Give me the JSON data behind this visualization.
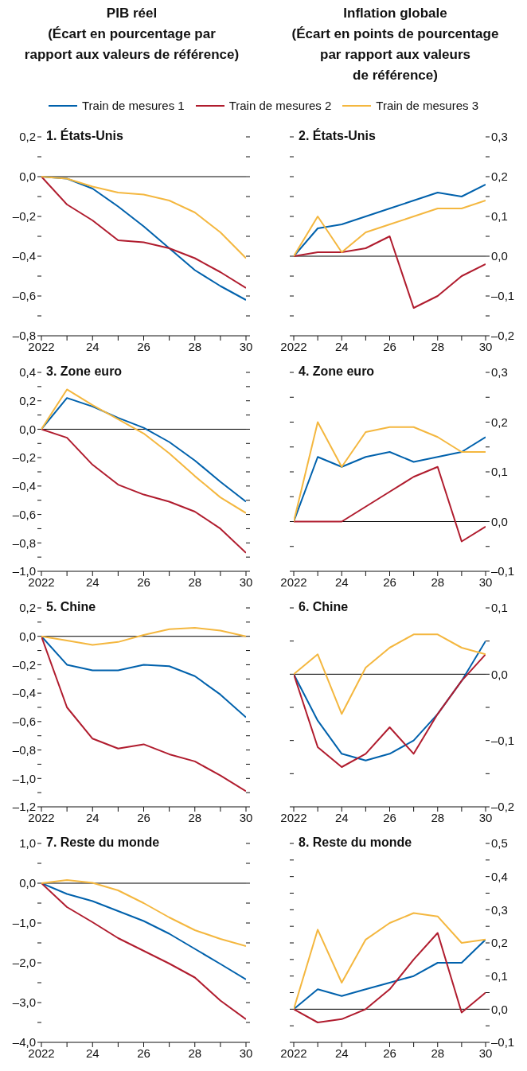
{
  "chart_data": [
    {
      "type": "line",
      "title": "1. États-Unis",
      "annotations": [
        "PIB réel\n(Écart en pourcentage par\nrapport aux valeurs de référence)"
      ],
      "legend": "top",
      "x": [
        2022,
        2023,
        2024,
        2025,
        2026,
        2027,
        2028,
        2029,
        2030
      ],
      "xlim": [
        2022,
        2030
      ],
      "xticks": [
        {
          "value": 2022,
          "label": "2022"
        },
        {
          "value": 2023,
          "label": null
        },
        {
          "value": 2024,
          "label": "24"
        },
        {
          "value": 2025,
          "label": null
        },
        {
          "value": 2026,
          "label": "26"
        },
        {
          "value": 2027,
          "label": null
        },
        {
          "value": 2028,
          "label": "28"
        },
        {
          "value": 2029,
          "label": null
        },
        {
          "value": 2030,
          "label": "30"
        }
      ],
      "ylim": [
        -0.8,
        0.2
      ],
      "yticks": [
        {
          "value": -0.8,
          "label": "–0,8"
        },
        {
          "value": -0.7,
          "label": null
        },
        {
          "value": -0.6,
          "label": "–0,6"
        },
        {
          "value": -0.5,
          "label": null
        },
        {
          "value": -0.4,
          "label": "–0,4"
        },
        {
          "value": -0.3,
          "label": null
        },
        {
          "value": -0.2,
          "label": "–0,2"
        },
        {
          "value": -0.1,
          "label": null
        },
        {
          "value": 0,
          "label": "0,0"
        },
        {
          "value": 0.1,
          "label": null
        },
        {
          "value": 0.2,
          "label": "0,2"
        }
      ],
      "ref_lines": [
        {
          "axis": "y",
          "value": 0,
          "color": "#000000"
        }
      ],
      "series": [
        {
          "name": "Train de mesures 1",
          "color": "#0061ac",
          "values": [
            0,
            -0.01,
            -0.06,
            -0.15,
            -0.25,
            -0.36,
            -0.47,
            -0.55,
            -0.62
          ]
        },
        {
          "name": "Train de mesures 2",
          "color": "#b01c2e",
          "values": [
            0,
            -0.14,
            -0.22,
            -0.32,
            -0.33,
            -0.36,
            -0.41,
            -0.48,
            -0.56
          ]
        },
        {
          "name": "Train de mesures 3",
          "color": "#f4b73f",
          "values": [
            0,
            -0.01,
            -0.05,
            -0.08,
            -0.09,
            -0.12,
            -0.18,
            -0.28,
            -0.41
          ]
        }
      ]
    },
    {
      "type": "line",
      "title": "2. États-Unis",
      "annotations": [
        "Inflation globale\n(Écart en points de pourcentage\npar rapport aux valeurs\nde référence)"
      ],
      "x": [
        2022,
        2023,
        2024,
        2025,
        2026,
        2027,
        2028,
        2029,
        2030
      ],
      "xlim": [
        2022,
        2030
      ],
      "xticks": [
        {
          "value": 2022,
          "label": "2022"
        },
        {
          "value": 2023,
          "label": null
        },
        {
          "value": 2024,
          "label": "24"
        },
        {
          "value": 2025,
          "label": null
        },
        {
          "value": 2026,
          "label": "26"
        },
        {
          "value": 2027,
          "label": null
        },
        {
          "value": 2028,
          "label": "28"
        },
        {
          "value": 2029,
          "label": null
        },
        {
          "value": 2030,
          "label": "30"
        }
      ],
      "ylim": [
        -0.2,
        0.3
      ],
      "yticks": [
        {
          "value": -0.2,
          "label": "–0,2"
        },
        {
          "value": -0.15,
          "label": null
        },
        {
          "value": -0.1,
          "label": "–0,1"
        },
        {
          "value": -0.05,
          "label": null
        },
        {
          "value": 0,
          "label": "0,0"
        },
        {
          "value": 0.05,
          "label": null
        },
        {
          "value": 0.1,
          "label": "0,1"
        },
        {
          "value": 0.15,
          "label": null
        },
        {
          "value": 0.2,
          "label": "0,2"
        },
        {
          "value": 0.25,
          "label": null
        },
        {
          "value": 0.3,
          "label": "0,3"
        }
      ],
      "ref_lines": [
        {
          "axis": "y",
          "value": 0,
          "color": "#000000"
        }
      ],
      "series": [
        {
          "color": "#0061ac",
          "values": [
            0,
            0.07,
            0.08,
            0.1,
            0.12,
            0.14,
            0.16,
            0.15,
            0.18
          ]
        },
        {
          "color": "#b01c2e",
          "values": [
            0,
            0.01,
            0.01,
            0.02,
            0.05,
            -0.13,
            -0.1,
            -0.05,
            -0.02
          ]
        },
        {
          "color": "#f4b73f",
          "values": [
            0,
            0.1,
            0.01,
            0.06,
            0.08,
            0.1,
            0.12,
            0.12,
            0.14
          ]
        }
      ]
    },
    {
      "type": "line",
      "title": "3. Zone euro",
      "x": [
        2022,
        2023,
        2024,
        2025,
        2026,
        2027,
        2028,
        2029,
        2030
      ],
      "xlim": [
        2022,
        2030
      ],
      "xticks": [
        {
          "value": 2022,
          "label": "2022"
        },
        {
          "value": 2023,
          "label": null
        },
        {
          "value": 2024,
          "label": "24"
        },
        {
          "value": 2025,
          "label": null
        },
        {
          "value": 2026,
          "label": "26"
        },
        {
          "value": 2027,
          "label": null
        },
        {
          "value": 2028,
          "label": "28"
        },
        {
          "value": 2029,
          "label": null
        },
        {
          "value": 2030,
          "label": "30"
        }
      ],
      "ylim": [
        -1.0,
        0.4
      ],
      "yticks": [
        {
          "value": -1.0,
          "label": "–1,0"
        },
        {
          "value": -0.9,
          "label": null
        },
        {
          "value": -0.8,
          "label": "–0,8"
        },
        {
          "value": -0.7,
          "label": null
        },
        {
          "value": -0.6,
          "label": "–0,6"
        },
        {
          "value": -0.5,
          "label": null
        },
        {
          "value": -0.4,
          "label": "–0,4"
        },
        {
          "value": -0.3,
          "label": null
        },
        {
          "value": -0.2,
          "label": "–0,2"
        },
        {
          "value": -0.1,
          "label": null
        },
        {
          "value": 0,
          "label": "0,0"
        },
        {
          "value": 0.1,
          "label": null
        },
        {
          "value": 0.2,
          "label": "0,2"
        },
        {
          "value": 0.3,
          "label": null
        },
        {
          "value": 0.4,
          "label": "0,4"
        }
      ],
      "ref_lines": [
        {
          "axis": "y",
          "value": 0,
          "color": "#000000"
        }
      ],
      "series": [
        {
          "color": "#0061ac",
          "values": [
            0,
            0.22,
            0.16,
            0.08,
            0.01,
            -0.09,
            -0.22,
            -0.37,
            -0.51
          ]
        },
        {
          "color": "#b01c2e",
          "values": [
            0,
            -0.06,
            -0.25,
            -0.39,
            -0.46,
            -0.51,
            -0.58,
            -0.7,
            -0.87
          ]
        },
        {
          "color": "#f4b73f",
          "values": [
            0,
            0.28,
            0.17,
            0.07,
            -0.03,
            -0.17,
            -0.33,
            -0.48,
            -0.59
          ]
        }
      ]
    },
    {
      "type": "line",
      "title": "4. Zone euro",
      "x": [
        2022,
        2023,
        2024,
        2025,
        2026,
        2027,
        2028,
        2029,
        2030
      ],
      "xlim": [
        2022,
        2030
      ],
      "xticks": [
        {
          "value": 2022,
          "label": "2022"
        },
        {
          "value": 2023,
          "label": null
        },
        {
          "value": 2024,
          "label": "24"
        },
        {
          "value": 2025,
          "label": null
        },
        {
          "value": 2026,
          "label": "26"
        },
        {
          "value": 2027,
          "label": null
        },
        {
          "value": 2028,
          "label": "28"
        },
        {
          "value": 2029,
          "label": null
        },
        {
          "value": 2030,
          "label": "30"
        }
      ],
      "ylim": [
        -0.1,
        0.3
      ],
      "yticks": [
        {
          "value": -0.1,
          "label": "–0,1"
        },
        {
          "value": -0.05,
          "label": null
        },
        {
          "value": 0,
          "label": "0,0"
        },
        {
          "value": 0.05,
          "label": null
        },
        {
          "value": 0.1,
          "label": "0,1"
        },
        {
          "value": 0.15,
          "label": null
        },
        {
          "value": 0.2,
          "label": "0,2"
        },
        {
          "value": 0.25,
          "label": null
        },
        {
          "value": 0.3,
          "label": "0,3"
        }
      ],
      "ref_lines": [
        {
          "axis": "y",
          "value": 0,
          "color": "#000000"
        }
      ],
      "series": [
        {
          "color": "#0061ac",
          "values": [
            0,
            0.13,
            0.11,
            0.13,
            0.14,
            0.12,
            0.13,
            0.14,
            0.17
          ]
        },
        {
          "color": "#b01c2e",
          "values": [
            0,
            0,
            0,
            0.03,
            0.06,
            0.09,
            0.11,
            -0.04,
            -0.01
          ]
        },
        {
          "color": "#f4b73f",
          "values": [
            0,
            0.2,
            0.11,
            0.18,
            0.19,
            0.19,
            0.17,
            0.14,
            0.14
          ]
        }
      ]
    },
    {
      "type": "line",
      "title": "5. Chine",
      "x": [
        2022,
        2023,
        2024,
        2025,
        2026,
        2027,
        2028,
        2029,
        2030
      ],
      "xlim": [
        2022,
        2030
      ],
      "xticks": [
        {
          "value": 2022,
          "label": "2022"
        },
        {
          "value": 2023,
          "label": null
        },
        {
          "value": 2024,
          "label": "24"
        },
        {
          "value": 2025,
          "label": null
        },
        {
          "value": 2026,
          "label": "26"
        },
        {
          "value": 2027,
          "label": null
        },
        {
          "value": 2028,
          "label": "28"
        },
        {
          "value": 2029,
          "label": null
        },
        {
          "value": 2030,
          "label": "30"
        }
      ],
      "ylim": [
        -1.2,
        0.2
      ],
      "yticks": [
        {
          "value": -1.2,
          "label": "–1,2"
        },
        {
          "value": -1.1,
          "label": null
        },
        {
          "value": -1.0,
          "label": "–1,0"
        },
        {
          "value": -0.9,
          "label": null
        },
        {
          "value": -0.8,
          "label": "–0,8"
        },
        {
          "value": -0.7,
          "label": null
        },
        {
          "value": -0.6,
          "label": "–0,6"
        },
        {
          "value": -0.5,
          "label": null
        },
        {
          "value": -0.4,
          "label": "–0,4"
        },
        {
          "value": -0.3,
          "label": null
        },
        {
          "value": -0.2,
          "label": "–0,2"
        },
        {
          "value": -0.1,
          "label": null
        },
        {
          "value": 0,
          "label": "0,0"
        },
        {
          "value": 0.1,
          "label": null
        },
        {
          "value": 0.2,
          "label": "0,2"
        }
      ],
      "ref_lines": [
        {
          "axis": "y",
          "value": 0,
          "color": "#000000"
        }
      ],
      "series": [
        {
          "color": "#0061ac",
          "values": [
            0,
            -0.2,
            -0.24,
            -0.24,
            -0.2,
            -0.21,
            -0.28,
            -0.41,
            -0.57
          ]
        },
        {
          "color": "#b01c2e",
          "values": [
            0,
            -0.5,
            -0.72,
            -0.79,
            -0.76,
            -0.83,
            -0.88,
            -0.98,
            -1.09
          ]
        },
        {
          "color": "#f4b73f",
          "values": [
            0,
            -0.03,
            -0.06,
            -0.04,
            0.01,
            0.05,
            0.06,
            0.04,
            0
          ]
        }
      ]
    },
    {
      "type": "line",
      "title": "6. Chine",
      "x": [
        2022,
        2023,
        2024,
        2025,
        2026,
        2027,
        2028,
        2029,
        2030
      ],
      "xlim": [
        2022,
        2030
      ],
      "xticks": [
        {
          "value": 2022,
          "label": "2022"
        },
        {
          "value": 2023,
          "label": null
        },
        {
          "value": 2024,
          "label": "24"
        },
        {
          "value": 2025,
          "label": null
        },
        {
          "value": 2026,
          "label": "26"
        },
        {
          "value": 2027,
          "label": null
        },
        {
          "value": 2028,
          "label": "28"
        },
        {
          "value": 2029,
          "label": null
        },
        {
          "value": 2030,
          "label": "30"
        }
      ],
      "ylim": [
        -0.2,
        0.1
      ],
      "yticks": [
        {
          "value": -0.2,
          "label": "–0,2"
        },
        {
          "value": -0.15,
          "label": null
        },
        {
          "value": -0.1,
          "label": "–0,1"
        },
        {
          "value": -0.05,
          "label": null
        },
        {
          "value": 0,
          "label": "0,0"
        },
        {
          "value": 0.05,
          "label": null
        },
        {
          "value": 0.1,
          "label": "0,1"
        }
      ],
      "ref_lines": [
        {
          "axis": "y",
          "value": 0,
          "color": "#000000"
        }
      ],
      "series": [
        {
          "color": "#0061ac",
          "values": [
            0,
            -0.07,
            -0.12,
            -0.13,
            -0.12,
            -0.1,
            -0.06,
            -0.01,
            0.05
          ]
        },
        {
          "color": "#b01c2e",
          "values": [
            0,
            -0.11,
            -0.14,
            -0.12,
            -0.08,
            -0.12,
            -0.06,
            -0.01,
            0.03
          ]
        },
        {
          "color": "#f4b73f",
          "values": [
            0,
            0.03,
            -0.06,
            0.01,
            0.04,
            0.06,
            0.06,
            0.04,
            0.03
          ]
        }
      ]
    },
    {
      "type": "line",
      "title": "7. Reste du monde",
      "x": [
        2022,
        2023,
        2024,
        2025,
        2026,
        2027,
        2028,
        2029,
        2030
      ],
      "xlim": [
        2022,
        2030
      ],
      "xticks": [
        {
          "value": 2022,
          "label": "2022"
        },
        {
          "value": 2023,
          "label": null
        },
        {
          "value": 2024,
          "label": "24"
        },
        {
          "value": 2025,
          "label": null
        },
        {
          "value": 2026,
          "label": "26"
        },
        {
          "value": 2027,
          "label": null
        },
        {
          "value": 2028,
          "label": "28"
        },
        {
          "value": 2029,
          "label": null
        },
        {
          "value": 2030,
          "label": "30"
        }
      ],
      "ylim": [
        -4.0,
        1.0
      ],
      "yticks": [
        {
          "value": -4.0,
          "label": "–4,0"
        },
        {
          "value": -3.5,
          "label": null
        },
        {
          "value": -3.0,
          "label": "–3,0"
        },
        {
          "value": -2.5,
          "label": null
        },
        {
          "value": -2.0,
          "label": "–2,0"
        },
        {
          "value": -1.5,
          "label": null
        },
        {
          "value": -1.0,
          "label": "–1,0"
        },
        {
          "value": -0.5,
          "label": null
        },
        {
          "value": 0,
          "label": "0,0"
        },
        {
          "value": 0.5,
          "label": null
        },
        {
          "value": 1.0,
          "label": "1,0"
        }
      ],
      "ref_lines": [
        {
          "axis": "y",
          "value": 0,
          "color": "#000000"
        }
      ],
      "series": [
        {
          "color": "#0061ac",
          "values": [
            0,
            -0.27,
            -0.45,
            -0.7,
            -0.95,
            -1.27,
            -1.65,
            -2.03,
            -2.42
          ]
        },
        {
          "color": "#b01c2e",
          "values": [
            0,
            -0.6,
            -0.98,
            -1.38,
            -1.7,
            -2.02,
            -2.37,
            -2.95,
            -3.42
          ]
        },
        {
          "color": "#f4b73f",
          "values": [
            0,
            0.08,
            0.01,
            -0.18,
            -0.5,
            -0.86,
            -1.18,
            -1.4,
            -1.58
          ]
        }
      ]
    },
    {
      "type": "line",
      "title": "8. Reste du monde",
      "x": [
        2022,
        2023,
        2024,
        2025,
        2026,
        2027,
        2028,
        2029,
        2030
      ],
      "xlim": [
        2022,
        2030
      ],
      "xticks": [
        {
          "value": 2022,
          "label": "2022"
        },
        {
          "value": 2023,
          "label": null
        },
        {
          "value": 2024,
          "label": "24"
        },
        {
          "value": 2025,
          "label": null
        },
        {
          "value": 2026,
          "label": "26"
        },
        {
          "value": 2027,
          "label": null
        },
        {
          "value": 2028,
          "label": "28"
        },
        {
          "value": 2029,
          "label": null
        },
        {
          "value": 2030,
          "label": "30"
        }
      ],
      "ylim": [
        -0.1,
        0.5
      ],
      "yticks": [
        {
          "value": -0.1,
          "label": "–0,1"
        },
        {
          "value": -0.05,
          "label": null
        },
        {
          "value": 0,
          "label": "0,0"
        },
        {
          "value": 0.05,
          "label": null
        },
        {
          "value": 0.1,
          "label": "0,1"
        },
        {
          "value": 0.15,
          "label": null
        },
        {
          "value": 0.2,
          "label": "0,2"
        },
        {
          "value": 0.25,
          "label": null
        },
        {
          "value": 0.3,
          "label": "0,3"
        },
        {
          "value": 0.35,
          "label": null
        },
        {
          "value": 0.4,
          "label": "0,4"
        },
        {
          "value": 0.45,
          "label": null
        },
        {
          "value": 0.5,
          "label": "0,5"
        }
      ],
      "ref_lines": [
        {
          "axis": "y",
          "value": 0,
          "color": "#000000"
        }
      ],
      "series": [
        {
          "color": "#0061ac",
          "values": [
            0,
            0.06,
            0.04,
            0.06,
            0.08,
            0.1,
            0.14,
            0.14,
            0.21
          ]
        },
        {
          "color": "#b01c2e",
          "values": [
            0,
            -0.04,
            -0.03,
            0,
            0.06,
            0.15,
            0.23,
            -0.01,
            0.05
          ]
        },
        {
          "color": "#f4b73f",
          "values": [
            0,
            0.24,
            0.08,
            0.21,
            0.26,
            0.29,
            0.28,
            0.2,
            0.21
          ]
        }
      ]
    }
  ]
}
